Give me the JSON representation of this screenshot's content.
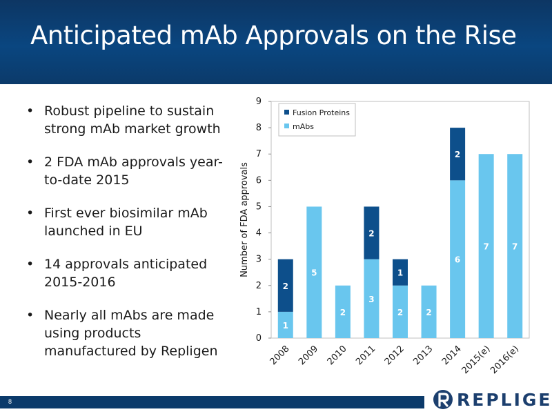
{
  "slide": {
    "title": "Anticipated mAb Approvals on the Rise",
    "page_number": "8",
    "logo_text": "REPLIGEN"
  },
  "bullets": [
    "Robust pipeline to sustain strong mAb market growth",
    "2 FDA mAb approvals year-to-date 2015",
    "First ever biosimilar mAb launched in EU",
    "14 approvals anticipated 2015-2016",
    "Nearly all mAbs are made using products manufactured by Repligen"
  ],
  "colors": {
    "header": "#0b3a6a",
    "fusion": "#0d4f8b",
    "mabs": "#69c6ee"
  },
  "chart_data": {
    "type": "bar",
    "stacked": true,
    "categories": [
      "2008",
      "2009",
      "2010",
      "2011",
      "2012",
      "2013",
      "2014",
      "2015(e)",
      "2016(e)"
    ],
    "series": [
      {
        "name": "mAbs",
        "values": [
          1,
          5,
          2,
          3,
          2,
          2,
          6,
          7,
          7
        ],
        "color": "#69c6ee"
      },
      {
        "name": "Fusion Proteins",
        "values": [
          2,
          0,
          0,
          2,
          1,
          0,
          2,
          0,
          0
        ],
        "color": "#0d4f8b"
      }
    ],
    "ylabel": "Number of FDA approvals",
    "ylim": [
      0,
      9
    ],
    "yticks": [
      0,
      1,
      2,
      3,
      4,
      5,
      6,
      7,
      8,
      9
    ],
    "grid": false,
    "legend": "top-left"
  }
}
